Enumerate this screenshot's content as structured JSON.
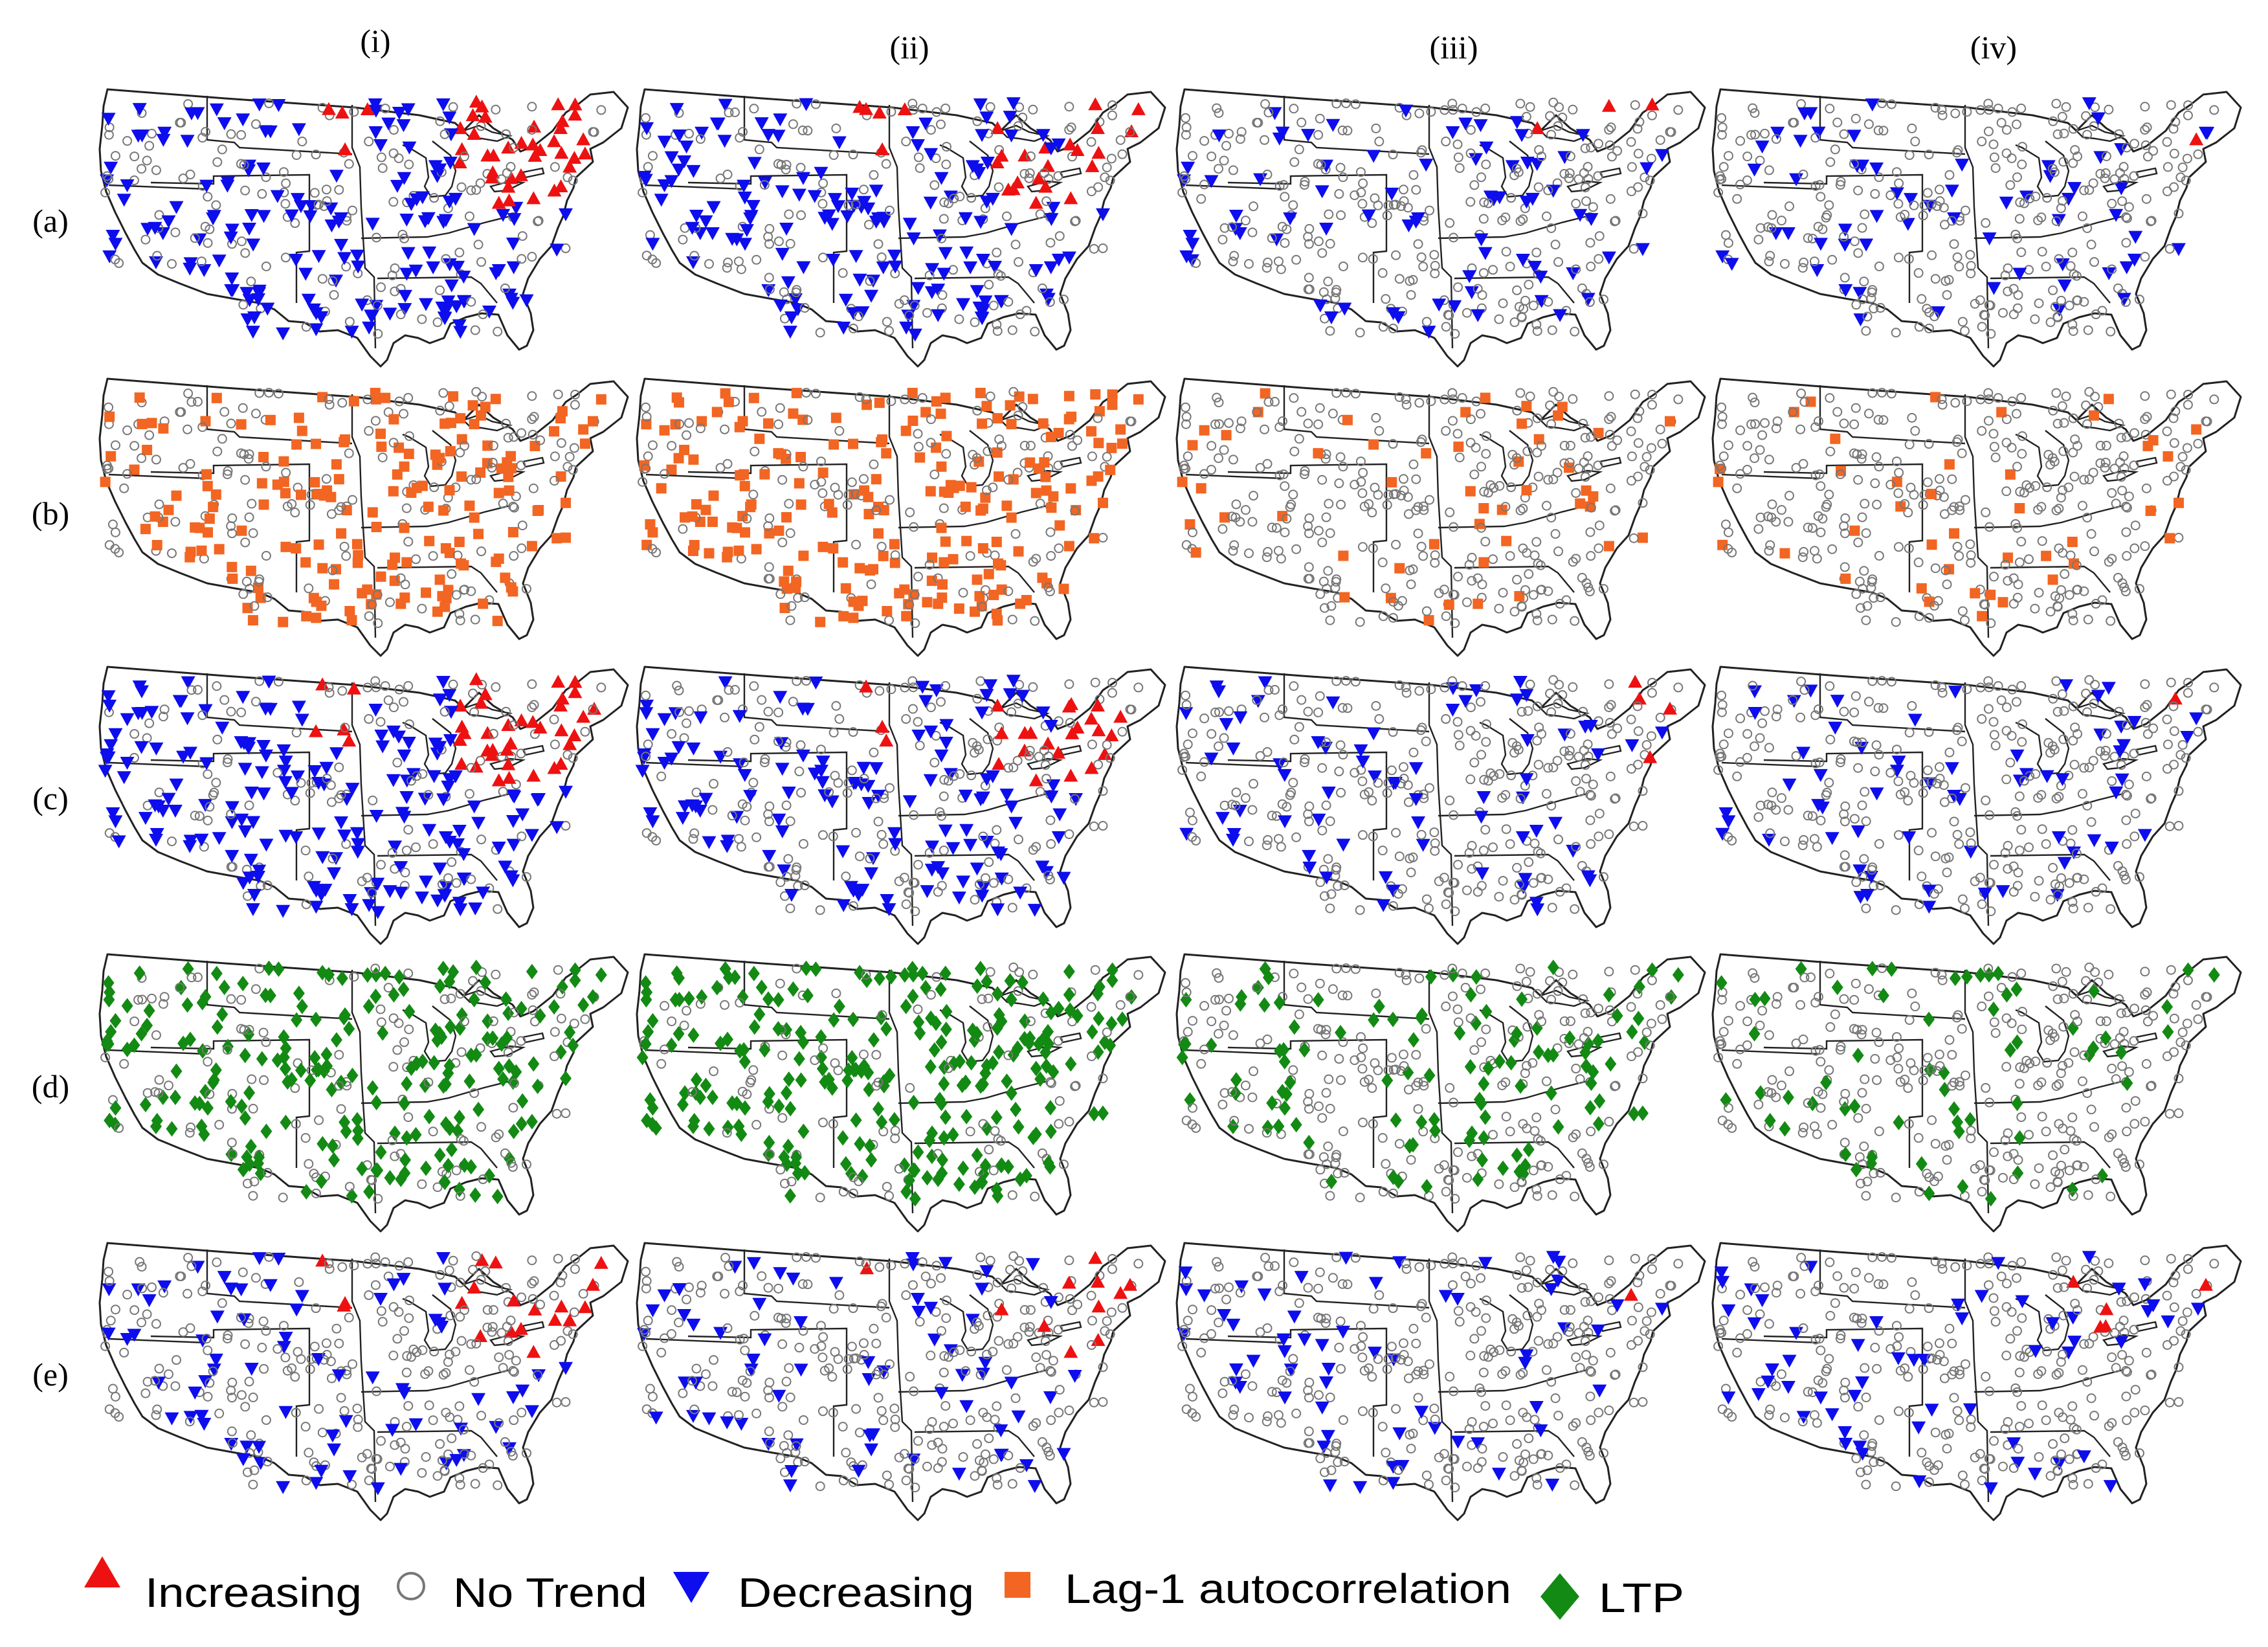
{
  "column_labels": [
    "(i)",
    "(ii)",
    "(iii)",
    "(iv)"
  ],
  "row_labels": [
    "(a)",
    "(b)",
    "(c)",
    "(d)",
    "(e)"
  ],
  "legend": [
    {
      "key": "increasing",
      "label": "Increasing",
      "shape": "triangle-up",
      "color": "#ee1111"
    },
    {
      "key": "no_trend",
      "label": "No Trend",
      "shape": "open-circle",
      "color": "#777777"
    },
    {
      "key": "decreasing",
      "label": "Decreasing",
      "shape": "triangle-down",
      "color": "#0d0ded"
    },
    {
      "key": "lag1",
      "label": "Lag-1 autocorrelation",
      "shape": "square",
      "color": "#f26522"
    },
    {
      "key": "ltp",
      "label": "LTP",
      "shape": "diamond",
      "color": "#138a13"
    }
  ],
  "panel_symbols": [
    [
      "trend",
      "trend",
      "trend",
      "trend"
    ],
    [
      "lag1",
      "lag1",
      "lag1",
      "lag1"
    ],
    [
      "trend",
      "trend",
      "trend",
      "trend"
    ],
    [
      "ltp",
      "ltp",
      "ltp",
      "ltp"
    ],
    [
      "trend",
      "trend",
      "trend",
      "trend"
    ]
  ]
}
